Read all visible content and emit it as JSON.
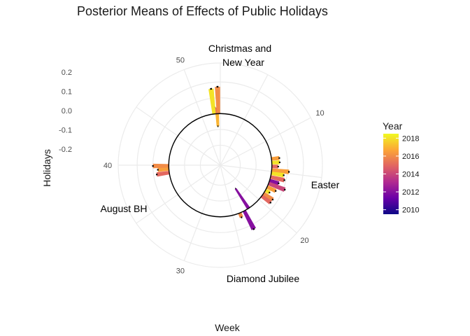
{
  "chart_data": {
    "type": "bar",
    "coord": "polar",
    "title": "Posterior Means of Effects of Public Holidays",
    "xlabel": "Week",
    "ylabel": "Holidays",
    "x_ticks": [
      "10",
      "20",
      "30",
      "40",
      "50"
    ],
    "y_ticks": [
      "0.2",
      "0.1",
      "0.0",
      "-0.1",
      "-0.2"
    ],
    "ylim": [
      -0.3,
      0.32
    ],
    "xlim": [
      1,
      53
    ],
    "legend": {
      "title": "Year",
      "position": "right",
      "min": 2009.5,
      "max": 2018.5,
      "labels": [
        "2018",
        "2016",
        "2014",
        "2012",
        "2010"
      ],
      "colors": [
        "#0D0887",
        "#6A00A8",
        "#B12A90",
        "#E16462",
        "#FCA636",
        "#F0F921"
      ]
    },
    "annotations": [
      "Christmas and",
      "New Year",
      "Easter",
      "Diamond Jubilee",
      "August BH"
    ],
    "bars": [
      {
        "week": 52.2,
        "year": 2015,
        "value": 0.04
      },
      {
        "week": 52.5,
        "year": 2017,
        "value": -0.08
      },
      {
        "week": 52.7,
        "year": 2016,
        "value": 0.17
      },
      {
        "week": 0.0,
        "year": 2018,
        "value": 0.16
      },
      {
        "week": 13.0,
        "year": 2016.5,
        "value": 0.05
      },
      {
        "week": 13.6,
        "year": 2018,
        "value": 0.05
      },
      {
        "week": 14.2,
        "year": 2015,
        "value": 0.04
      },
      {
        "week": 14.8,
        "year": 2016.5,
        "value": 0.11
      },
      {
        "week": 15.3,
        "year": 2018,
        "value": 0.08
      },
      {
        "week": 15.9,
        "year": 2015,
        "value": 0.09
      },
      {
        "week": 16.5,
        "year": 2012,
        "value": 0.06
      },
      {
        "week": 17.0,
        "year": 2014,
        "value": 0.11
      },
      {
        "week": 17.6,
        "year": 2016.5,
        "value": 0.06
      },
      {
        "week": 18.2,
        "year": 2018,
        "value": 0.03
      },
      {
        "week": 18.8,
        "year": 2016,
        "value": 0.07
      },
      {
        "week": 19.3,
        "year": 2015,
        "value": 0.07
      },
      {
        "week": 22.2,
        "year": 2012,
        "value": -0.15
      },
      {
        "week": 23.0,
        "year": 2012,
        "value": 0.13
      },
      {
        "week": 23.8,
        "year": 2016,
        "value": 0.03
      },
      {
        "week": 38.8,
        "year": 2015,
        "value": 0.08
      },
      {
        "week": 39.4,
        "year": 2016.5,
        "value": 0.07
      },
      {
        "week": 39.9,
        "year": 2016,
        "value": 0.1
      }
    ]
  }
}
